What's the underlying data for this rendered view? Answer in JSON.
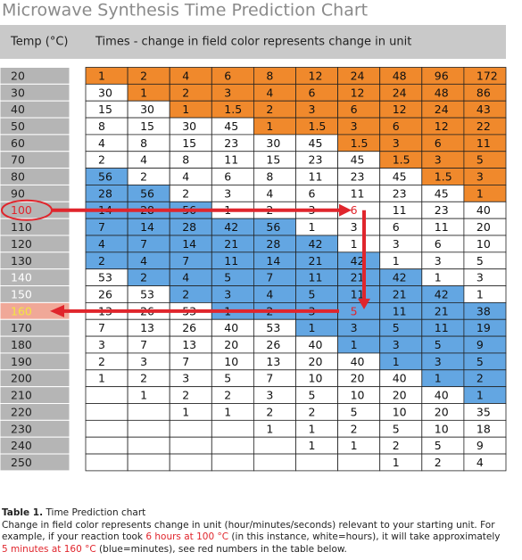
{
  "title": "Microwave Synthesis Time Prediction Chart",
  "header": {
    "temp": "Temp (°C)",
    "times": "Times - change in field color represents change in unit"
  },
  "palette": {
    "o": "#f0892c",
    "w": "#ffffff",
    "b": "#63a6e2"
  },
  "table": {
    "rows": [
      {
        "temp": "20",
        "cells": [
          "1",
          "2",
          "4",
          "6",
          "8",
          "12",
          "24",
          "48",
          "96",
          "172"
        ],
        "colors": "oooooooooo"
      },
      {
        "temp": "30",
        "cells": [
          "30",
          "1",
          "2",
          "3",
          "4",
          "6",
          "12",
          "24",
          "48",
          "86"
        ],
        "colors": "wooooooooo"
      },
      {
        "temp": "40",
        "cells": [
          "15",
          "30",
          "1",
          "1.5",
          "2",
          "3",
          "6",
          "12",
          "24",
          "43"
        ],
        "colors": "wwoooooooo"
      },
      {
        "temp": "50",
        "cells": [
          "8",
          "15",
          "30",
          "45",
          "1",
          "1.5",
          "3",
          "6",
          "12",
          "22"
        ],
        "colors": "wwwwoooooo"
      },
      {
        "temp": "60",
        "cells": [
          "4",
          "8",
          "15",
          "23",
          "30",
          "45",
          "1.5",
          "3",
          "6",
          "11"
        ],
        "colors": "wwwwwwoooo"
      },
      {
        "temp": "70",
        "cells": [
          "2",
          "4",
          "8",
          "11",
          "15",
          "23",
          "45",
          "1.5",
          "3",
          "5"
        ],
        "colors": "wwwwwwwooo"
      },
      {
        "temp": "80",
        "cells": [
          "56",
          "2",
          "4",
          "6",
          "8",
          "11",
          "23",
          "45",
          "1.5",
          "3"
        ],
        "colors": "bwwwwwwwoo"
      },
      {
        "temp": "90",
        "cells": [
          "28",
          "56",
          "2",
          "3",
          "4",
          "6",
          "11",
          "23",
          "45",
          "1"
        ],
        "colors": "bbwwwwwwwo"
      },
      {
        "temp": "100",
        "cells": [
          "14",
          "28",
          "56",
          "1",
          "2",
          "3",
          "6",
          "11",
          "23",
          "40"
        ],
        "colors": "bbbwwwwwww"
      },
      {
        "temp": "110",
        "cells": [
          "7",
          "14",
          "28",
          "42",
          "56",
          "1",
          "3",
          "6",
          "11",
          "20"
        ],
        "colors": "bbbbbwwwww"
      },
      {
        "temp": "120",
        "cells": [
          "4",
          "7",
          "14",
          "21",
          "28",
          "42",
          "1",
          "3",
          "6",
          "10"
        ],
        "colors": "bbbbbbwwww"
      },
      {
        "temp": "130",
        "cells": [
          "2",
          "4",
          "7",
          "11",
          "14",
          "21",
          "42",
          "1",
          "3",
          "5"
        ],
        "colors": "bbbbbbbwww"
      },
      {
        "temp": "140",
        "cells": [
          "53",
          "2",
          "4",
          "5",
          "7",
          "11",
          "21",
          "42",
          "1",
          "3"
        ],
        "colors": "wbbbbbbbww"
      },
      {
        "temp": "150",
        "cells": [
          "26",
          "53",
          "2",
          "3",
          "4",
          "5",
          "11",
          "21",
          "42",
          "1"
        ],
        "colors": "wwbbbbbbbw"
      },
      {
        "temp": "160",
        "cells": [
          "13",
          "26",
          "53",
          "1",
          "2",
          "3",
          "5",
          "11",
          "21",
          "38"
        ],
        "colors": "wwwbbbbbbb"
      },
      {
        "temp": "170",
        "cells": [
          "7",
          "13",
          "26",
          "40",
          "53",
          "1",
          "3",
          "5",
          "11",
          "19"
        ],
        "colors": "wwwwwbbbbb"
      },
      {
        "temp": "180",
        "cells": [
          "3",
          "7",
          "13",
          "20",
          "26",
          "40",
          "1",
          "3",
          "5",
          "9"
        ],
        "colors": "wwwwwwbbbb"
      },
      {
        "temp": "190",
        "cells": [
          "2",
          "3",
          "7",
          "10",
          "13",
          "20",
          "40",
          "1",
          "3",
          "5"
        ],
        "colors": "wwwwwwwbbb"
      },
      {
        "temp": "200",
        "cells": [
          "1",
          "2",
          "3",
          "5",
          "7",
          "10",
          "20",
          "40",
          "1",
          "2"
        ],
        "colors": "wwwwwwwwbb"
      },
      {
        "temp": "210",
        "cells": [
          null,
          "1",
          "2",
          "2",
          "3",
          "5",
          "10",
          "20",
          "40",
          "1"
        ],
        "colors": "wwwwwwwwwb"
      },
      {
        "temp": "220",
        "cells": [
          null,
          null,
          "1",
          "1",
          "2",
          "2",
          "5",
          "10",
          "20",
          "35"
        ],
        "colors": "wwwwwwwwww"
      },
      {
        "temp": "230",
        "cells": [
          null,
          null,
          null,
          null,
          "1",
          "1",
          "2",
          "5",
          "10",
          "18"
        ],
        "colors": "wwwwwwwwww"
      },
      {
        "temp": "240",
        "cells": [
          null,
          null,
          null,
          null,
          null,
          "1",
          "1",
          "2",
          "5",
          "9"
        ],
        "colors": "wwwwwwwwww"
      },
      {
        "temp": "250",
        "cells": [
          null,
          null,
          null,
          null,
          null,
          null,
          null,
          "1",
          "2",
          "4"
        ],
        "colors": "wwwwwwwwww"
      }
    ]
  },
  "caption": {
    "label": "Table 1.",
    "title": "Time Prediction chart",
    "text": [
      "Change in field color represents change in unit (hour/minutes/seconds) relevant to your starting unit. For example, if your reaction took ",
      "6 hours at 100 °C",
      " (in this instance, white=hours), it will take approximately ",
      "5 minutes at 160 °C",
      " (blue=minutes), see red numbers in the table below."
    ]
  }
}
